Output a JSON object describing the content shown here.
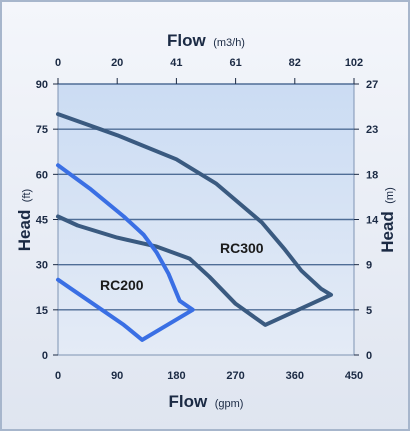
{
  "chart_data": {
    "type": "line",
    "title": "",
    "top_axis": {
      "label": "Flow",
      "unit": "(m3/h)",
      "ticks": [
        "0",
        "20",
        "41",
        "61",
        "82",
        "102"
      ],
      "range": [
        0,
        102
      ]
    },
    "bottom_axis": {
      "label": "Flow",
      "unit": "(gpm)",
      "ticks": [
        "0",
        "90",
        "180",
        "270",
        "360",
        "450"
      ],
      "range": [
        0,
        450
      ]
    },
    "left_axis": {
      "label": "Head",
      "unit": "(ft)",
      "ticks": [
        "0",
        "15",
        "30",
        "45",
        "60",
        "75",
        "90"
      ],
      "range": [
        0,
        90
      ]
    },
    "right_axis": {
      "label": "Head",
      "unit": "(m)",
      "ticks": [
        "0",
        "5",
        "9",
        "14",
        "18",
        "23",
        "27"
      ],
      "range": [
        0,
        27
      ]
    },
    "grid": "horizontal",
    "legend": "none",
    "series": [
      {
        "name": "RC300",
        "color": "#3a5a80",
        "x": [
          0,
          90,
          180,
          240,
          310,
          345,
          370,
          400,
          415,
          315,
          270,
          230,
          200,
          150,
          90,
          30,
          0
        ],
        "y": [
          80,
          73,
          65,
          57,
          44,
          35,
          28,
          22,
          20,
          10,
          17,
          26,
          32,
          36,
          39,
          43,
          46
        ]
      },
      {
        "name": "RC200",
        "color": "#3a6fe4",
        "x": [
          0,
          50,
          100,
          130,
          150,
          168,
          185,
          205,
          128,
          100,
          60,
          20,
          0
        ],
        "y": [
          63,
          55,
          46,
          40,
          34,
          27,
          18,
          15,
          5,
          10,
          16,
          22,
          25
        ]
      }
    ]
  }
}
